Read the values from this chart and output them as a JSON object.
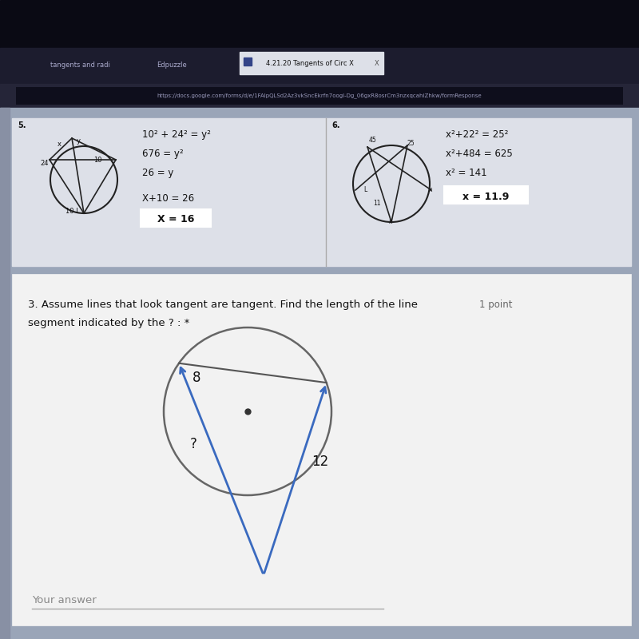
{
  "url_text": "https://docs.google.com/forms/d/e/1FAIpQLSd2Az3vkSncEkrfn7oogl-Dg_06gxR8osrCm3nzxqcahiZhkw/formResponse",
  "tab_active_text": "4.21.20 Tangents of Circ X",
  "tab_inactive_1": "tangents and radi",
  "tab_inactive_2": "Edpuzzle",
  "question_text_line1": "3. Assume lines that look tangent are tangent. Find the length of the line",
  "question_text_line2": "segment indicated by the ? : *",
  "points_text": "1 point",
  "your_answer_text": "Your answer",
  "label_8": "8",
  "label_question": "?",
  "label_12": "12",
  "bg_dark": "#0a0a14",
  "bg_browser_dark": "#1a1a2e",
  "bg_tab_bar": "#222235",
  "bg_tab_active": "#e8e8e8",
  "bg_url_bar": "#14141e",
  "bg_page": "#9aa0b0",
  "bg_card": "#e8e8e8",
  "bg_question_card": "#f2f2f2",
  "circle_edge_color": "#555555",
  "line_color": "#3a6abf",
  "text_dark": "#111111",
  "text_gray": "#777777",
  "text_tab": "#ccccdd"
}
